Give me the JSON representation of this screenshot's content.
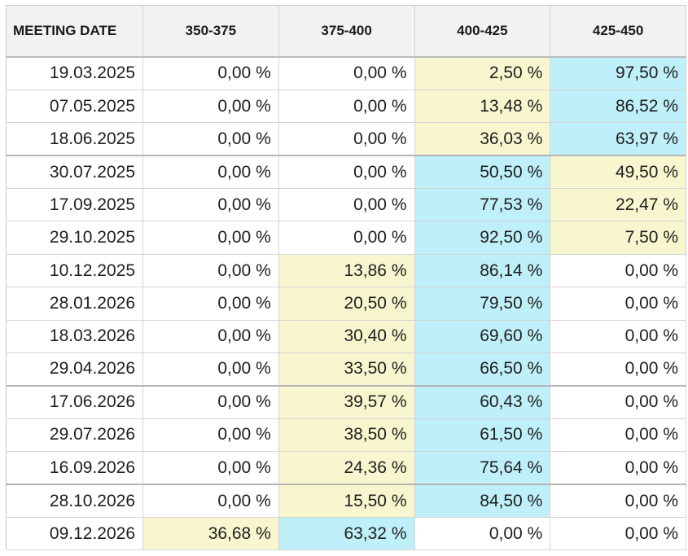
{
  "table": {
    "headers": [
      "MEETING DATE",
      "350-375",
      "375-400",
      "400-425",
      "425-450"
    ],
    "rows": [
      {
        "date": "19.03.2025",
        "values": [
          "0,00 %",
          "0,00 %",
          "2,50 %",
          "97,50 %"
        ],
        "highlight": [
          "",
          "",
          "yellow",
          "blue"
        ]
      },
      {
        "date": "07.05.2025",
        "values": [
          "0,00 %",
          "0,00 %",
          "13,48 %",
          "86,52 %"
        ],
        "highlight": [
          "",
          "",
          "yellow",
          "blue"
        ]
      },
      {
        "date": "18.06.2025",
        "values": [
          "0,00 %",
          "0,00 %",
          "36,03 %",
          "63,97 %"
        ],
        "highlight": [
          "",
          "",
          "yellow",
          "blue"
        ]
      },
      {
        "date": "30.07.2025",
        "values": [
          "0,00 %",
          "0,00 %",
          "50,50 %",
          "49,50 %"
        ],
        "highlight": [
          "",
          "",
          "blue",
          "yellow"
        ]
      },
      {
        "date": "17.09.2025",
        "values": [
          "0,00 %",
          "0,00 %",
          "77,53 %",
          "22,47 %"
        ],
        "highlight": [
          "",
          "",
          "blue",
          "yellow"
        ]
      },
      {
        "date": "29.10.2025",
        "values": [
          "0,00 %",
          "0,00 %",
          "92,50 %",
          "7,50 %"
        ],
        "highlight": [
          "",
          "",
          "blue",
          "yellow"
        ]
      },
      {
        "date": "10.12.2025",
        "values": [
          "0,00 %",
          "13,86 %",
          "86,14 %",
          "0,00 %"
        ],
        "highlight": [
          "",
          "yellow",
          "blue",
          ""
        ]
      },
      {
        "date": "28.01.2026",
        "values": [
          "0,00 %",
          "20,50 %",
          "79,50 %",
          "0,00 %"
        ],
        "highlight": [
          "",
          "yellow",
          "blue",
          ""
        ]
      },
      {
        "date": "18.03.2026",
        "values": [
          "0,00 %",
          "30,40 %",
          "69,60 %",
          "0,00 %"
        ],
        "highlight": [
          "",
          "yellow",
          "blue",
          ""
        ]
      },
      {
        "date": "29.04.2026",
        "values": [
          "0,00 %",
          "33,50 %",
          "66,50 %",
          "0,00 %"
        ],
        "highlight": [
          "",
          "yellow",
          "blue",
          ""
        ]
      },
      {
        "date": "17.06.2026",
        "values": [
          "0,00 %",
          "39,57 %",
          "60,43 %",
          "0,00 %"
        ],
        "highlight": [
          "",
          "yellow",
          "blue",
          ""
        ]
      },
      {
        "date": "29.07.2026",
        "values": [
          "0,00 %",
          "38,50 %",
          "61,50 %",
          "0,00 %"
        ],
        "highlight": [
          "",
          "yellow",
          "blue",
          ""
        ]
      },
      {
        "date": "16.09.2026",
        "values": [
          "0,00 %",
          "24,36 %",
          "75,64 %",
          "0,00 %"
        ],
        "highlight": [
          "",
          "yellow",
          "blue",
          ""
        ]
      },
      {
        "date": "28.10.2026",
        "values": [
          "0,00 %",
          "15,50 %",
          "84,50 %",
          "0,00 %"
        ],
        "highlight": [
          "",
          "yellow",
          "blue",
          ""
        ]
      },
      {
        "date": "09.12.2026",
        "values": [
          "36,68 %",
          "63,32 %",
          "0,00 %",
          "0,00 %"
        ],
        "highlight": [
          "yellow",
          "blue",
          "",
          ""
        ]
      }
    ]
  },
  "colors": {
    "highlight_yellow": "#f7f6cf",
    "highlight_blue": "#bfeff8",
    "header_bg": "#f2f2f2",
    "border": "#d4d4d4"
  }
}
